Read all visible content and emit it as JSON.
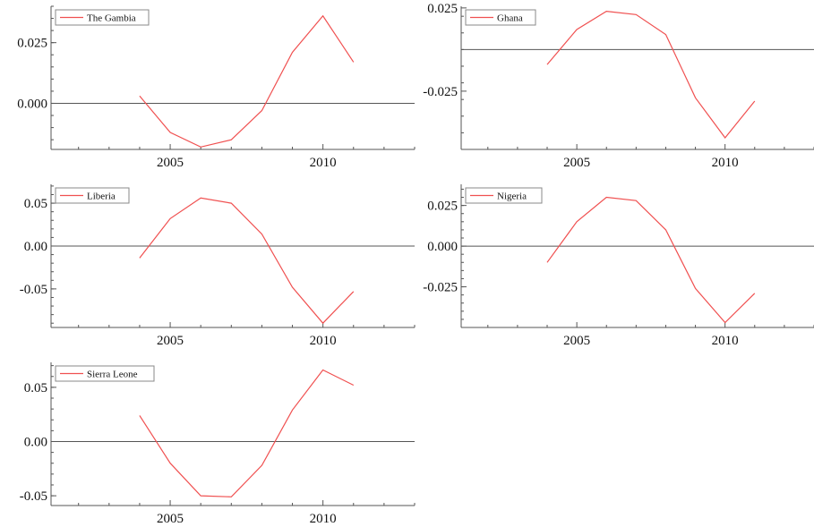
{
  "chart_data": [
    {
      "type": "line",
      "legend": "The Gambia",
      "legend_position": "top-left",
      "x": [
        2004,
        2005,
        2006,
        2007,
        2008,
        2009,
        2010,
        2011
      ],
      "series": [
        {
          "name": "The Gambia",
          "values": [
            0.003,
            -0.012,
            -0.018,
            -0.015,
            -0.003,
            0.021,
            0.036,
            0.017
          ]
        }
      ],
      "xlim": [
        2001.1,
        2013.0
      ],
      "ylim": [
        -0.019,
        0.04
      ],
      "xticks": [
        2005,
        2010
      ],
      "xtick_labels": [
        "2005",
        "2010"
      ],
      "yticks": [
        0.0,
        0.025
      ],
      "ytick_labels": [
        "0.000",
        "0.025"
      ],
      "hline": 0.0,
      "grid": false
    },
    {
      "type": "line",
      "legend": "Ghana",
      "legend_position": "top-left",
      "x": [
        2004,
        2005,
        2006,
        2007,
        2008,
        2009,
        2010,
        2011
      ],
      "series": [
        {
          "name": "Ghana",
          "values": [
            -0.009,
            0.012,
            0.023,
            0.021,
            0.009,
            -0.029,
            -0.053,
            -0.031
          ]
        }
      ],
      "xlim": [
        2001.1,
        2013.0
      ],
      "ylim": [
        -0.06,
        0.026
      ],
      "xticks": [
        2005,
        2010
      ],
      "xtick_labels": [
        "2005",
        "2010"
      ],
      "yticks": [
        -0.025,
        0.025
      ],
      "ytick_labels": [
        "-0.025",
        "0.025"
      ],
      "hline": 0.0,
      "grid": false
    },
    {
      "type": "line",
      "legend": "Liberia",
      "legend_position": "top-left",
      "x": [
        2004,
        2005,
        2006,
        2007,
        2008,
        2009,
        2010,
        2011
      ],
      "series": [
        {
          "name": "Liberia",
          "values": [
            -0.014,
            0.032,
            0.056,
            0.05,
            0.014,
            -0.048,
            -0.09,
            -0.053
          ]
        }
      ],
      "xlim": [
        2001.1,
        2013.0
      ],
      "ylim": [
        -0.095,
        0.072
      ],
      "xticks": [
        2005,
        2010
      ],
      "xtick_labels": [
        "2005",
        "2010"
      ],
      "yticks": [
        -0.05,
        0.0,
        0.05
      ],
      "ytick_labels": [
        "-0.05",
        "0.00",
        "0.05"
      ],
      "hline": 0.0,
      "grid": false
    },
    {
      "type": "line",
      "legend": "Nigeria",
      "legend_position": "top-left",
      "x": [
        2004,
        2005,
        2006,
        2007,
        2008,
        2009,
        2010,
        2011
      ],
      "series": [
        {
          "name": "Nigeria",
          "values": [
            -0.01,
            0.015,
            0.03,
            0.028,
            0.01,
            -0.026,
            -0.047,
            -0.029
          ]
        }
      ],
      "xlim": [
        2001.1,
        2013.0
      ],
      "ylim": [
        -0.05,
        0.038
      ],
      "xticks": [
        2005,
        2010
      ],
      "xtick_labels": [
        "2005",
        "2010"
      ],
      "yticks": [
        -0.025,
        0.0,
        0.025
      ],
      "ytick_labels": [
        "-0.025",
        "0.000",
        "0.025"
      ],
      "hline": 0.0,
      "grid": false
    },
    {
      "type": "line",
      "legend": "Sierra Leone",
      "legend_position": "top-left",
      "x": [
        2004,
        2005,
        2006,
        2007,
        2008,
        2009,
        2010,
        2011
      ],
      "series": [
        {
          "name": "Sierra Leone",
          "values": [
            0.024,
            -0.02,
            -0.05,
            -0.051,
            -0.022,
            0.029,
            0.066,
            0.052
          ]
        }
      ],
      "xlim": [
        2001.1,
        2013.0
      ],
      "ylim": [
        -0.059,
        0.073
      ],
      "xticks": [
        2005,
        2010
      ],
      "xtick_labels": [
        "2005",
        "2010"
      ],
      "yticks": [
        -0.05,
        0.0,
        0.05
      ],
      "ytick_labels": [
        "-0.05",
        "0.00",
        "0.05"
      ],
      "hline": 0.0,
      "grid": false
    }
  ],
  "colors": {
    "series_line": "#f05050",
    "axis": "#555555",
    "zero_line": "#555555",
    "legend_border": "#888888",
    "text": "#111111"
  }
}
